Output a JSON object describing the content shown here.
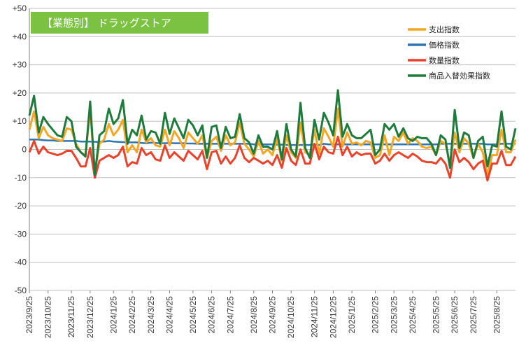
{
  "chart_data": {
    "type": "line",
    "title": "【業態別】 ドラッグストア",
    "title_bg": "#7cc242",
    "ylim": [
      -50,
      50
    ],
    "yticks": [
      50,
      40,
      30,
      20,
      10,
      0,
      -10,
      -20,
      -30,
      -40,
      -50
    ],
    "ytick_labels": [
      "+50",
      "+40",
      "+30",
      "+20",
      "+10",
      "0",
      "-10",
      "-20",
      "-30",
      "-40",
      "-50"
    ],
    "x_ticks": [
      {
        "label": "2023/9/25",
        "idx": 0
      },
      {
        "label": "2023/10/25",
        "idx": 4
      },
      {
        "label": "2023/11/25",
        "idx": 9
      },
      {
        "label": "2023/12/25",
        "idx": 13
      },
      {
        "label": "2024/1/25",
        "idx": 18
      },
      {
        "label": "2024/2/25",
        "idx": 22
      },
      {
        "label": "2024/3/25",
        "idx": 26
      },
      {
        "label": "2024/4/25",
        "idx": 30
      },
      {
        "label": "2024/5/25",
        "idx": 35
      },
      {
        "label": "2024/6/25",
        "idx": 39
      },
      {
        "label": "2024/7/25",
        "idx": 43
      },
      {
        "label": "2024/8/25",
        "idx": 48
      },
      {
        "label": "2024/9/25",
        "idx": 52
      },
      {
        "label": "2024/10/25",
        "idx": 56
      },
      {
        "label": "2024/11/25",
        "idx": 61
      },
      {
        "label": "2024/12/25",
        "idx": 65
      },
      {
        "label": "2025/1/25",
        "idx": 69
      },
      {
        "label": "2025/2/25",
        "idx": 74
      },
      {
        "label": "2025/3/25",
        "idx": 78
      },
      {
        "label": "2025/4/25",
        "idx": 82
      },
      {
        "label": "2025/5/25",
        "idx": 87
      },
      {
        "label": "2025/6/25",
        "idx": 91
      },
      {
        "label": "2025/7/25",
        "idx": 95
      },
      {
        "label": "2025/8/25",
        "idx": 100
      }
    ],
    "n_points": 105,
    "legend_position": "top-right",
    "series": [
      {
        "name": "支出指数",
        "color": "#f5a623",
        "values": [
          7,
          13.5,
          4,
          8,
          5,
          4,
          3.5,
          3,
          7.5,
          7,
          2,
          -1,
          -2,
          14,
          -8,
          2,
          3.5,
          9,
          5,
          7,
          10.5,
          -1,
          1.5,
          -1,
          7,
          2.5,
          4,
          1.5,
          1,
          7,
          1.5,
          6.5,
          4,
          0.5,
          6,
          4,
          2,
          5,
          -3,
          3,
          4.5,
          -0.5,
          5,
          1.5,
          2.5,
          9.5,
          2,
          0,
          -2.5,
          3,
          -1.5,
          0,
          -2,
          4,
          -4,
          5,
          -1,
          -3,
          9.5,
          -1,
          -2,
          7,
          -1.5,
          7.5,
          4.5,
          1,
          14.5,
          1,
          6,
          2,
          2.5,
          1.5,
          3,
          2.5,
          -3,
          -2,
          5,
          -2,
          4.5,
          3,
          6,
          2,
          4,
          3,
          1,
          0.5,
          1,
          -2,
          3,
          2,
          -5,
          6,
          -1,
          4,
          2,
          -3,
          2,
          -1,
          -9,
          -2,
          -2,
          7,
          -1,
          -1,
          3.5
        ]
      },
      {
        "name": "価格指数",
        "color": "#2e75b6",
        "values": [
          3.5,
          3.5,
          3.5,
          3.3,
          3.2,
          3.2,
          3,
          3,
          3,
          3,
          3,
          2.8,
          2.8,
          2.8,
          2.7,
          2.7,
          2.8,
          3,
          2.8,
          2.7,
          2.6,
          2.5,
          2.5,
          2.5,
          2.3,
          2.2,
          2.4,
          2.3,
          2.2,
          2.2,
          2.3,
          2.2,
          2.2,
          2.2,
          2.1,
          2.1,
          2,
          2,
          2,
          2,
          2,
          2,
          2,
          2,
          2,
          2,
          2,
          2,
          1.8,
          1.8,
          1.8,
          1.8,
          1.8,
          1.7,
          1.7,
          1.6,
          1.6,
          1.6,
          1.6,
          1.6,
          1.6,
          1.6,
          1.6,
          2,
          1.8,
          1.8,
          1.8,
          1.8,
          1.8,
          1.8,
          1.8,
          1.8,
          1.8,
          1.8,
          1.8,
          1.8,
          1.8,
          1.8,
          1.8,
          1.8,
          1.8,
          1.8,
          1.8,
          1.8,
          1.8,
          1.8,
          1.8,
          1.8,
          2,
          2,
          2,
          2,
          2,
          2,
          2,
          2,
          2,
          2,
          1.8,
          1.8,
          1.8,
          2,
          2,
          2,
          2
        ]
      },
      {
        "name": "数量指数",
        "color": "#e8432d",
        "values": [
          -1,
          3,
          -1.5,
          1,
          -1,
          -1.5,
          -2,
          -1.5,
          -0.5,
          -0.5,
          -3,
          -6,
          -6,
          0.5,
          -10,
          -4,
          -3,
          -2,
          -3,
          -2,
          1,
          -6,
          -4.5,
          -5,
          0.5,
          -2,
          -1,
          -3.5,
          -4,
          1.5,
          -3,
          -1,
          -2.5,
          -4,
          -0.5,
          -2,
          -3.5,
          -0.5,
          -7,
          -1,
          -0.5,
          -5,
          -2.5,
          -5,
          -3,
          1.5,
          -3,
          -4.5,
          -3,
          -4,
          -5,
          -4,
          -5.5,
          -2,
          -6.5,
          0.5,
          -4,
          -5.5,
          0,
          -5,
          -5,
          2,
          -3.5,
          1,
          -1,
          -1.5,
          4.5,
          -2,
          1,
          -2.5,
          -1,
          -2,
          -1.5,
          -1.5,
          -5,
          -4,
          -1.5,
          -4,
          -2,
          -1,
          -2,
          -3,
          -1.5,
          -2.5,
          -4,
          -4.5,
          -4.5,
          -5,
          -3,
          -5,
          -10,
          0,
          -4.5,
          -3,
          -4.5,
          -7,
          -5,
          -4,
          -11,
          -5,
          -5,
          -0.5,
          -5.5,
          -5.5,
          -2.5
        ]
      },
      {
        "name": "商品入替効果指数",
        "color": "#1e7b3c",
        "values": [
          12,
          19,
          6,
          11.5,
          9,
          7,
          5,
          4.5,
          11.5,
          10,
          1,
          -1,
          -2.5,
          17,
          -9,
          5,
          6.5,
          14.5,
          9,
          11,
          17.5,
          2,
          7,
          5,
          12,
          3.5,
          6.5,
          6,
          2,
          13,
          5.5,
          11,
          7.5,
          4,
          10.5,
          8.5,
          5,
          8.5,
          -3,
          8,
          8.5,
          0.5,
          8,
          4,
          4.5,
          12.5,
          4,
          2.5,
          -1.5,
          5,
          1,
          1,
          0,
          6.5,
          -3.5,
          9,
          0,
          -2.5,
          16.5,
          0.5,
          -3,
          10.5,
          3.5,
          13,
          9.5,
          5,
          21,
          4.5,
          9,
          5,
          4,
          4,
          5.5,
          7,
          -2,
          0,
          9,
          7,
          9,
          4.5,
          7.5,
          4,
          3,
          4.5,
          4,
          4,
          2,
          -2,
          5,
          3.5,
          -6.5,
          14,
          0.5,
          6,
          5,
          -3,
          3,
          4.5,
          -6,
          1.5,
          1,
          13.5,
          1,
          0,
          7.5
        ]
      }
    ]
  }
}
